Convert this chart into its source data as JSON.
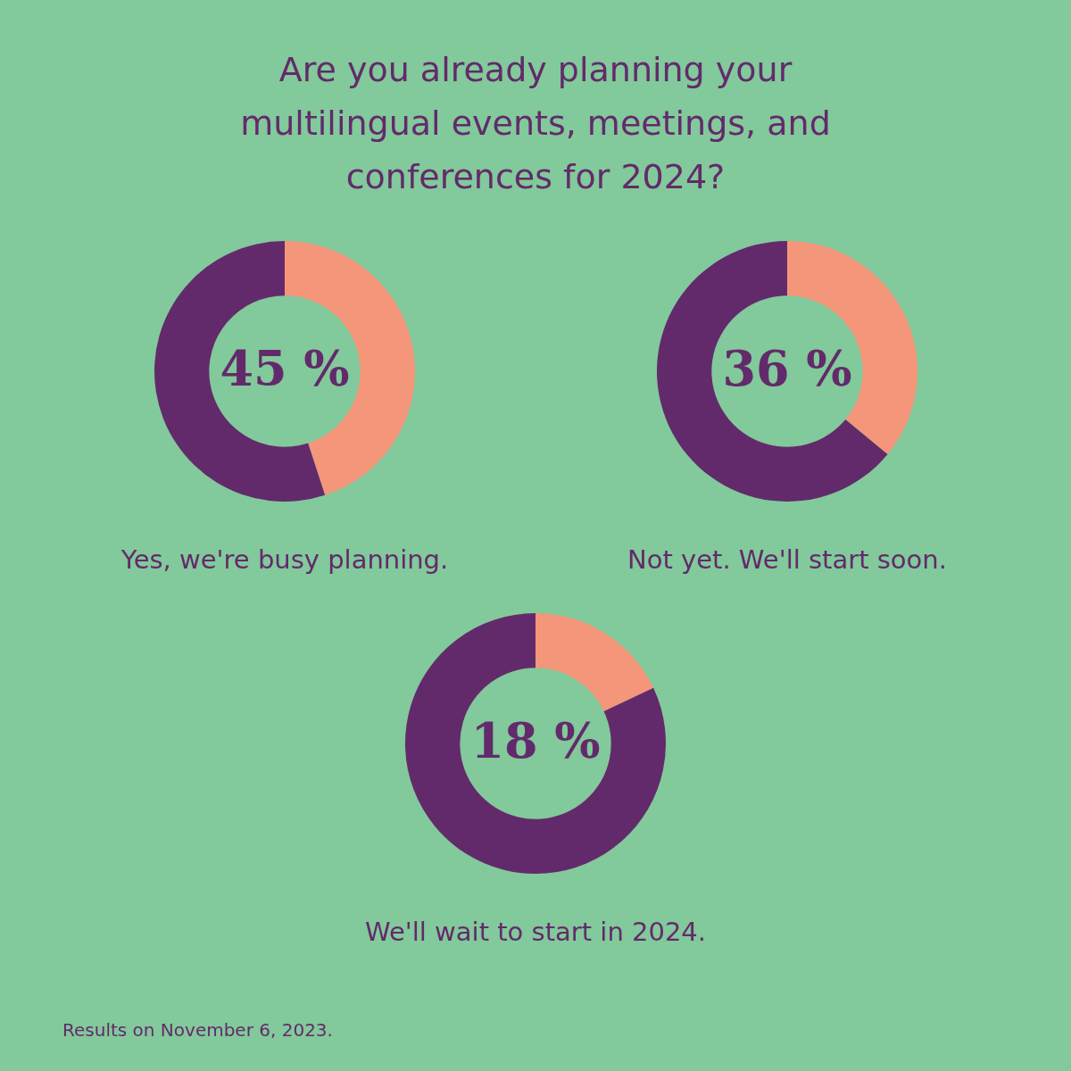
{
  "chart_data": [
    {
      "type": "donut",
      "title": "Are you already planning your multilingual events, meetings, and conferences for 2024?",
      "xlabel": "Yes, we're busy planning.",
      "categories": [
        null,
        null
      ],
      "values": [
        45,
        55
      ],
      "colors": [
        "#f4967a",
        "#632a6b"
      ],
      "value_labels": [
        "45 %",
        null
      ]
    },
    {
      "type": "donut",
      "xlabel": "Not yet. We'll start soon.",
      "categories": [
        null,
        null
      ],
      "values": [
        36,
        64
      ],
      "colors": [
        "#f4967a",
        "#632a6b"
      ],
      "value_labels": [
        "36 %",
        null
      ]
    },
    {
      "type": "donut",
      "xlabel": "We'll wait to start in 2024.",
      "categories": [
        null,
        null
      ],
      "values": [
        18,
        82
      ],
      "colors": [
        "#f4967a",
        "#632a6b"
      ],
      "value_labels": [
        "18 %",
        null
      ],
      "annotations": [
        "Results on November 6, 2023."
      ]
    }
  ]
}
